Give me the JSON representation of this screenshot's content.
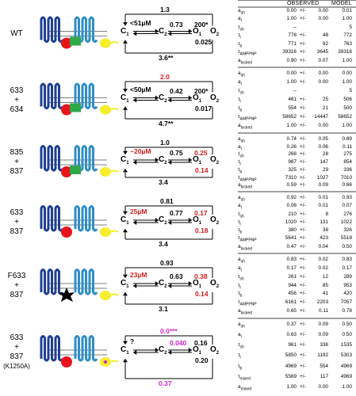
{
  "header": {
    "observed": "OBSERVED",
    "model": "MODEL"
  },
  "states": {
    "c1": "C",
    "c1_sub": "1",
    "c2": "C",
    "c2_sub": "2",
    "o1": "O",
    "o1_sub": "1",
    "o2": "O",
    "o2_sub": "2"
  },
  "colors": {
    "blue": "#1f3f93",
    "red": "#e8141b",
    "green": "#2fa84a",
    "yellow": "#f5ee2c",
    "light_blue": "#2f8ec8",
    "black": "#000000",
    "rate_red": "#d21d1d",
    "rate_magenta": "#cc22cc"
  },
  "rows": [
    {
      "label": [
        "WT"
      ],
      "icons": [
        "blue-domain",
        "red-ball",
        "green-linker",
        "light-blue-domain",
        "yellow-ball"
      ],
      "rates": {
        "top": "1.3",
        "k1": "<51µM",
        "k2": "0.73",
        "k3": "200*",
        "k3r": "0.025",
        "bottom": "3.6**"
      },
      "table": [
        {
          "p": "a",
          "s": "sh",
          "v": "0.00",
          "e": "0.00",
          "m": "0.01"
        },
        {
          "p": "a",
          "s": "l",
          "v": "1.00",
          "e": "0.00",
          "m": "1.00"
        },
        {
          "p": "τ",
          "s": "sh",
          "v": "--",
          "e": "",
          "m": "5"
        },
        {
          "p": "τ",
          "s": "l",
          "v": "778",
          "e": "48",
          "m": "772"
        },
        {
          "p": "τ",
          "s": "b",
          "v": "771",
          "e": "92",
          "m": "763"
        },
        {
          "p": "τ",
          "s": "AMPPNP",
          "v": "39316",
          "e": "3645",
          "m": "39316"
        },
        {
          "p": "a",
          "s": "locked",
          "v": "0.90",
          "e": "0.07",
          "m": "1.00"
        }
      ]
    },
    {
      "label": [
        "633",
        "+",
        "634"
      ],
      "icons": [
        "blue-domain",
        "red-ball",
        "green-linker",
        "light-blue-domain",
        "yellow-ball"
      ],
      "rates": {
        "top": "2.0",
        "k1": "<50µM",
        "k2": "0.42",
        "k3": "200*",
        "k3r": "0.017",
        "bottom": "4.7**"
      },
      "table": [
        {
          "p": "a",
          "s": "sh",
          "v": "0.00",
          "e": "0.00",
          "m": "0.00"
        },
        {
          "p": "a",
          "s": "l",
          "v": "1.00",
          "e": "0.00",
          "m": "1.00"
        },
        {
          "p": "τ",
          "s": "sh",
          "v": "--",
          "e": "",
          "m": "5"
        },
        {
          "p": "τ",
          "s": "l",
          "v": "461",
          "e": "25",
          "m": "506"
        },
        {
          "p": "τ",
          "s": "b",
          "v": "554",
          "e": "21",
          "m": "500"
        },
        {
          "p": "τ",
          "s": "AMPPNP",
          "v": "58652",
          "e": "14447",
          "m": "58652"
        },
        {
          "p": "a",
          "s": "locked",
          "v": "1.00",
          "e": "0.00",
          "m": "1.00"
        }
      ]
    },
    {
      "label": [
        "835",
        "+",
        "837"
      ],
      "icons": [
        "blue-domain",
        "red-ball",
        "green-linker",
        "light-blue-domain",
        "yellow-ball"
      ],
      "rates": {
        "top": "1.0",
        "k1": "~20µM",
        "k2": "0.75",
        "k3": "0.25",
        "k3r": "0.14",
        "bottom": "3.4"
      },
      "table": [
        {
          "p": "a",
          "s": "sh",
          "v": "0.74",
          "e": "0.05",
          "m": "0.89"
        },
        {
          "p": "a",
          "s": "l",
          "v": "0.26",
          "e": "0.06",
          "m": "0.11"
        },
        {
          "p": "τ",
          "s": "sh",
          "v": "268",
          "e": "28",
          "m": "275"
        },
        {
          "p": "τ",
          "s": "l",
          "v": "987",
          "e": "147",
          "m": "854"
        },
        {
          "p": "τ",
          "s": "b",
          "v": "325",
          "e": "29",
          "m": "336"
        },
        {
          "p": "τ",
          "s": "AMPPNP",
          "v": "7310",
          "e": "1027",
          "m": "7010"
        },
        {
          "p": "a",
          "s": "locked",
          "v": "0.59",
          "e": "0.09",
          "m": "0.66"
        }
      ]
    },
    {
      "label": [
        "633",
        "+",
        "837"
      ],
      "icons": [
        "blue-domain",
        "red-ball",
        "light-blue-domain",
        "yellow-ball"
      ],
      "rates": {
        "top": "0.81",
        "k1": "25µM",
        "k2": "0.77",
        "k3": "0.17",
        "k3r": "0.18",
        "bottom": "3.4"
      },
      "table": [
        {
          "p": "a",
          "s": "sh",
          "v": "0.92",
          "e": "0.01",
          "m": "0.93"
        },
        {
          "p": "a",
          "s": "l",
          "v": "0.08",
          "e": "0.01",
          "m": "0.07"
        },
        {
          "p": "τ",
          "s": "sh",
          "v": "210",
          "e": "8",
          "m": "276"
        },
        {
          "p": "τ",
          "s": "l",
          "v": "1020",
          "e": "131",
          "m": "1022"
        },
        {
          "p": "τ",
          "s": "b",
          "v": "380",
          "e": "38",
          "m": "326"
        },
        {
          "p": "τ",
          "s": "AMPPNP",
          "v": "5641",
          "e": "423",
          "m": "5518"
        },
        {
          "p": "a",
          "s": "locked",
          "v": "0.47",
          "e": "0.04",
          "m": "0.50"
        }
      ]
    },
    {
      "label": [
        "F633",
        "+",
        "837"
      ],
      "icons": [
        "blue-domain",
        "black-star",
        "light-blue-domain",
        "yellow-ball"
      ],
      "rates": {
        "top": "0.93",
        "k1": "23µM",
        "k2": "0.63",
        "k3": "0.38",
        "k3r": "0.14",
        "bottom": "3.1"
      },
      "table": [
        {
          "p": "a",
          "s": "sh",
          "v": "0.83",
          "e": "0.02",
          "m": "0.83"
        },
        {
          "p": "a",
          "s": "l",
          "v": "0.17",
          "e": "0.02",
          "m": "0.17"
        },
        {
          "p": "τ",
          "s": "sh",
          "v": "261",
          "e": "12",
          "m": "289"
        },
        {
          "p": "τ",
          "s": "l",
          "v": "944",
          "e": "85",
          "m": "953"
        },
        {
          "p": "τ",
          "s": "b",
          "v": "456",
          "e": "41",
          "m": "420"
        },
        {
          "p": "τ",
          "s": "AMPPNP",
          "v": "6161",
          "e": "2203",
          "m": "7057"
        },
        {
          "p": "a",
          "s": "locked",
          "v": "0.65",
          "e": "0.11",
          "m": "0.78"
        }
      ]
    },
    {
      "label": [
        "633",
        "+",
        "837",
        "(K1250A)"
      ],
      "icons": [
        "blue-domain",
        "red-ball",
        "light-blue-domain",
        "yellow-ball",
        "magenta-dot"
      ],
      "rates": {
        "top": "0.0***",
        "k1": "?",
        "k2": "0.040",
        "k3": "0.16",
        "k3r": "0.20",
        "bottom": "0.37"
      },
      "table": [
        {
          "p": "a",
          "s": "sh",
          "v": "0.37",
          "e": "0.09",
          "m": "0.50"
        },
        {
          "p": "a",
          "s": "l",
          "v": "0.63",
          "e": "0.09",
          "m": "0.50"
        },
        {
          "p": "τ",
          "s": "sh",
          "v": "961",
          "e": "338",
          "m": "1535"
        },
        {
          "p": "τ",
          "s": "l",
          "v": "5850",
          "e": "1192",
          "m": "5303"
        },
        {
          "p": "τ",
          "s": "b",
          "v": "4969",
          "e": "554",
          "m": "4969"
        },
        {
          "p": "τ",
          "s": "mixed",
          "v": "5569",
          "e": "117",
          "m": "4969"
        },
        {
          "p": "a",
          "s": "mixed",
          "v": "1.00",
          "e": "0.00",
          "m": "1.00"
        }
      ]
    }
  ]
}
